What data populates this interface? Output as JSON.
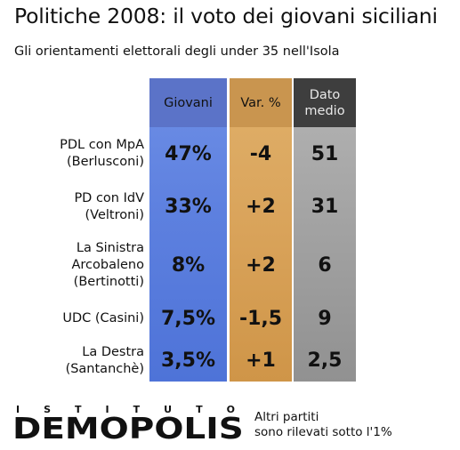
{
  "header": {
    "title": "Politiche 2008: il voto dei giovani siciliani",
    "subtitle": "Gli orientamenti elettorali degli under 35 nell'Isola"
  },
  "chart_data": {
    "type": "table",
    "columns": [
      "Giovani",
      "Var. %",
      "Dato\nmedio"
    ],
    "column_colors": [
      "#5d80df",
      "#d9a35a",
      "#a2a2a2"
    ],
    "rows": [
      {
        "label": [
          "PDL con MpA",
          "(Berlusconi)"
        ],
        "values": [
          "47%",
          "-4",
          "51"
        ]
      },
      {
        "label": [
          "PD con IdV",
          "(Veltroni)"
        ],
        "values": [
          "33%",
          "+2",
          "31"
        ]
      },
      {
        "label": [
          "La Sinistra",
          "Arcobaleno",
          "(Bertinotti)"
        ],
        "values": [
          "8%",
          "+2",
          "6"
        ]
      },
      {
        "label": [
          "UDC (Casini)"
        ],
        "values": [
          "7,5%",
          "-1,5",
          "9"
        ]
      },
      {
        "label": [
          "La Destra",
          "(Santanchè)"
        ],
        "values": [
          "3,5%",
          "+1",
          "2,5"
        ]
      }
    ]
  },
  "footer": {
    "logo_top": [
      "I",
      "S",
      "T",
      "I",
      "T",
      "U",
      "T",
      "O"
    ],
    "logo_brand": "DEMOPOLIS",
    "note": [
      "Altri partiti",
      "sono rilevati sotto l'1%"
    ]
  }
}
